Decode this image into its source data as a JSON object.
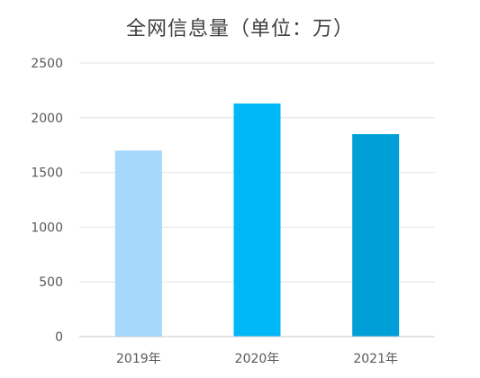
{
  "chart_data": {
    "type": "bar",
    "title": "全网信息量（单位：万）",
    "xlabel": "",
    "ylabel": "",
    "categories": [
      "2019年",
      "2020年",
      "2021年"
    ],
    "values": [
      1700,
      2130,
      1850
    ],
    "ylim": [
      0,
      2500
    ],
    "yticks": [
      0,
      500,
      1000,
      1500,
      2000,
      2500
    ],
    "grid": true,
    "legend": "none",
    "bar_colors": [
      "#a6d8fb",
      "#00b7f8",
      "#009fd8"
    ],
    "grid_color": "#e3e3e3",
    "axis_color": "#c9c9c9"
  }
}
